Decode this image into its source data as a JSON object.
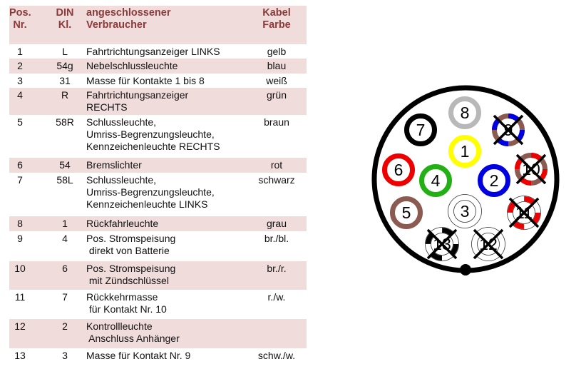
{
  "table": {
    "header": {
      "pos": "Pos.\nNr.",
      "din": "DIN\nKl.",
      "verbraucher": "angeschlossener\nVerbraucher",
      "farbe": "Kabel\nFarbe"
    },
    "rows": [
      {
        "pos": "1",
        "din": "L",
        "verbraucher": "Fahrtrichtungsanzeiger LINKS",
        "farbe": "gelb"
      },
      {
        "pos": "2",
        "din": "54g",
        "verbraucher": "Nebelschlussleuchte",
        "farbe": "blau"
      },
      {
        "pos": "3",
        "din": "31",
        "verbraucher": "Masse für Kontakte 1 bis 8",
        "farbe": "weiß"
      },
      {
        "pos": "4",
        "din": "R",
        "verbraucher": "Fahrtrichtungsanzeiger\nRECHTS",
        "farbe": "grün"
      },
      {
        "pos": "5",
        "din": "58R",
        "verbraucher": "Schlussleuchte,\nUmriss-Begrenzungsleuchte,\nKennzeichenleuchte RECHTS",
        "farbe": "braun"
      },
      {
        "pos": "6",
        "din": "54",
        "verbraucher": "Bremslichter",
        "farbe": "rot"
      },
      {
        "pos": "7",
        "din": "58L",
        "verbraucher": "Schlussleuchte,\nUmriss-Begrenzungsleuchte,\nKennzeichenleuchte LINKS",
        "farbe": "schwarz"
      },
      {
        "pos": "8",
        "din": "1",
        "verbraucher": "Rückfahrleuchte",
        "farbe": "grau"
      },
      {
        "pos": "9",
        "din": "4",
        "verbraucher": "Pos. Stromspeisung\n direkt von Batterie",
        "farbe": "br./bl."
      },
      {
        "pos": "10",
        "din": "6",
        "verbraucher": "Pos. Stromspeisung\n mit Zündschlüssel",
        "farbe": "br./r."
      },
      {
        "pos": "11",
        "din": "7",
        "verbraucher": "Rückkehrmasse\n für Kontakt Nr. 10",
        "farbe": "r./w."
      },
      {
        "pos": "12",
        "din": "2",
        "verbraucher": "Kontrollleuchte\n Anschluss Anhänger",
        "farbe": ""
      },
      {
        "pos": "13",
        "din": "3",
        "verbraucher": "Masse für Kontakt Nr. 9",
        "farbe": "schw./w."
      }
    ]
  },
  "connector": {
    "pins": [
      {
        "n": "8",
        "c1": "#b8b8b8",
        "c2": null,
        "crossed": false
      },
      {
        "n": "7",
        "c1": "#000000",
        "c2": null,
        "crossed": false
      },
      {
        "n": "9",
        "c1": "#8b5a50",
        "c2": "#0000e0",
        "crossed": true
      },
      {
        "n": "1",
        "c1": "#ffff00",
        "c2": null,
        "crossed": false
      },
      {
        "n": "6",
        "c1": "#ee0000",
        "c2": null,
        "crossed": false
      },
      {
        "n": "10",
        "c1": "#8b5a50",
        "c2": "#ee0000",
        "crossed": true
      },
      {
        "n": "4",
        "c1": "#22b014",
        "c2": null,
        "crossed": false
      },
      {
        "n": "2",
        "c1": "#0000e0",
        "c2": null,
        "crossed": false
      },
      {
        "n": "5",
        "c1": "#8b5a50",
        "c2": null,
        "crossed": false
      },
      {
        "n": "3",
        "c1": "#ffffff",
        "c2": null,
        "crossed": false
      },
      {
        "n": "11",
        "c1": "#ffffff",
        "c2": "#ee0000",
        "crossed": true
      },
      {
        "n": "13",
        "c1": "#ffffff",
        "c2": "#000000",
        "crossed": true
      },
      {
        "n": "12",
        "c1": "#ffffff",
        "c2": null,
        "crossed": true
      }
    ]
  }
}
